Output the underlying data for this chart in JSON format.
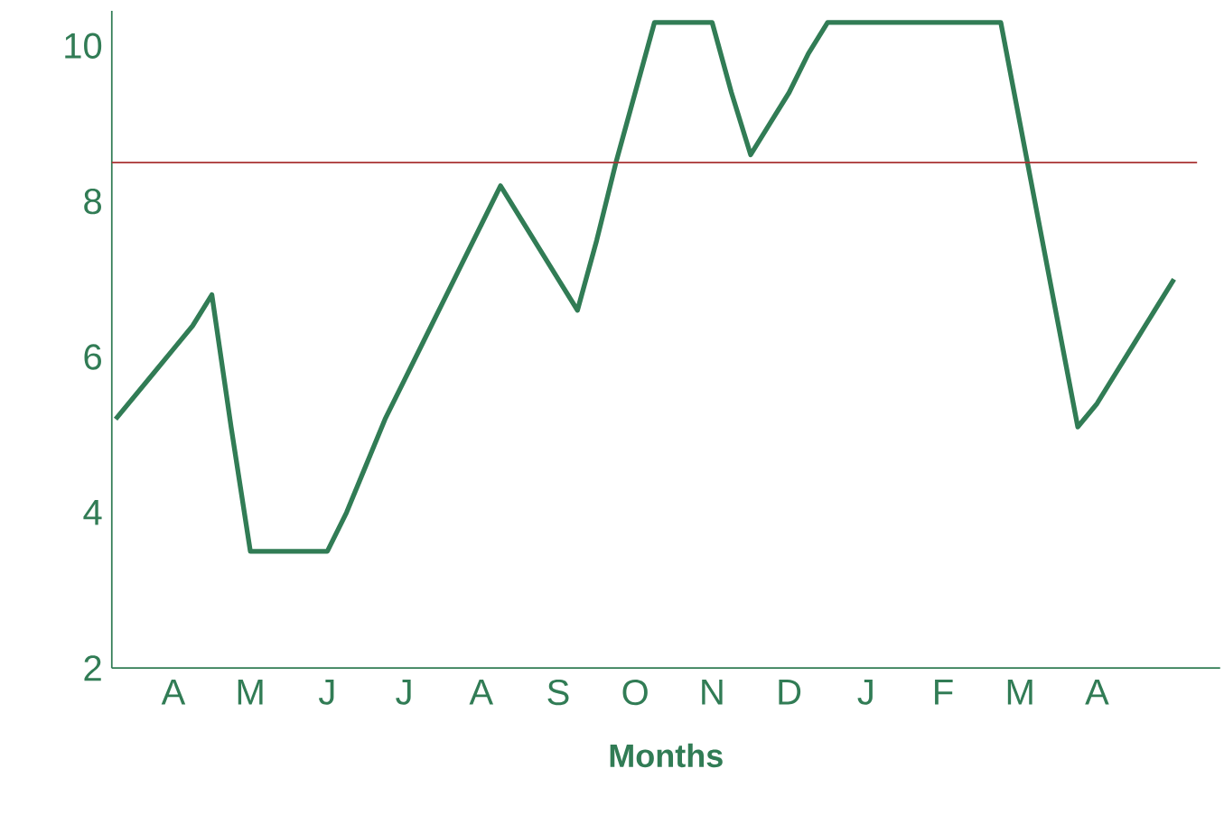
{
  "chart_data": {
    "type": "line",
    "xlabel": "Months",
    "categories": [
      null,
      null,
      null,
      "A",
      null,
      null,
      null,
      "M",
      null,
      null,
      null,
      "J",
      null,
      null,
      null,
      "J",
      null,
      null,
      null,
      "A",
      null,
      null,
      null,
      "S",
      null,
      null,
      null,
      "O",
      null,
      null,
      null,
      "N",
      null,
      null,
      null,
      "D",
      null,
      null,
      null,
      "J",
      null,
      null,
      null,
      "F",
      null,
      null,
      null,
      "M",
      null,
      null,
      null,
      "A",
      null,
      null,
      null,
      null
    ],
    "values": [
      5.2,
      5.5,
      5.8,
      6.1,
      6.4,
      6.8,
      5.1,
      3.5,
      3.5,
      3.5,
      3.5,
      3.5,
      4.0,
      4.6,
      5.2,
      5.7,
      6.2,
      6.7,
      7.2,
      7.7,
      8.2,
      7.8,
      7.4,
      7.0,
      6.6,
      7.5,
      8.5,
      9.4,
      10.3,
      10.3,
      10.3,
      10.3,
      9.4,
      8.6,
      9.0,
      9.4,
      9.9,
      10.3,
      10.3,
      10.3,
      10.3,
      10.3,
      10.3,
      10.3,
      10.3,
      10.3,
      10.3,
      9.0,
      7.7,
      6.4,
      5.1,
      5.4,
      5.8,
      6.2,
      6.6,
      7.0
    ],
    "color": "#317c55",
    "ylim": [
      2,
      10.45
    ],
    "yticks": [
      2,
      4,
      6,
      8,
      10
    ],
    "ref_lines": [
      {
        "axis": "y",
        "value": 8.5,
        "color": "#a83232"
      }
    ],
    "marker": "none",
    "line_style": "solid"
  }
}
